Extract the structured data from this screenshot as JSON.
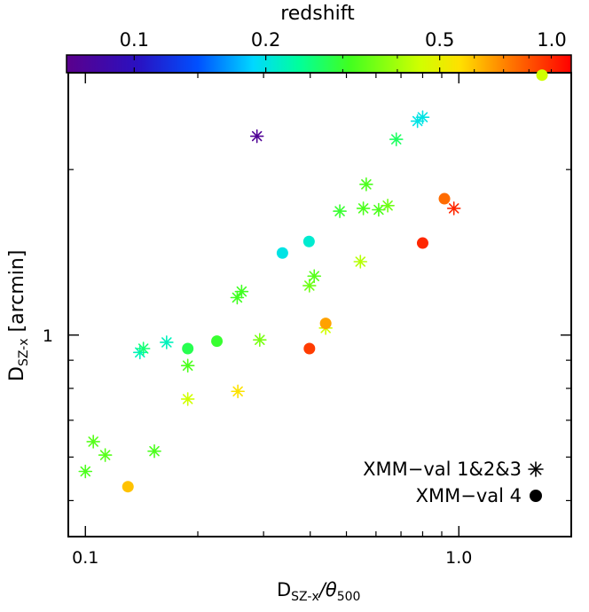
{
  "chart_data": {
    "type": "scatter",
    "xscale": "log",
    "yscale": "log",
    "xlim": [
      0.09,
      2.0
    ],
    "ylim": [
      0.43,
      3.0
    ],
    "xlabel": "D",
    "xlabel_sub": "SZ-x",
    "xlabel_mid": "/θ",
    "xlabel_sub2": "500",
    "ylabel": "D",
    "ylabel_sub": "SZ-x",
    "ylabel_unit": " [arcmin]",
    "x_ticks": [
      {
        "value": 0.1,
        "label": "0.1"
      },
      {
        "value": 1.0,
        "label": "1.0"
      }
    ],
    "y_ticks": [
      {
        "value": 1,
        "label": "1"
      }
    ],
    "colorbar": {
      "title": "redshift",
      "scale": "log",
      "range": [
        0.07,
        1.0
      ],
      "ticks": [
        {
          "value": 0.1,
          "label": "0.1"
        },
        {
          "value": 0.2,
          "label": "0.2"
        },
        {
          "value": 0.5,
          "label": "0.5"
        },
        {
          "value": 1.0,
          "label": "1.0"
        }
      ]
    },
    "legend": {
      "position": "bottom-right",
      "entries": [
        {
          "label": "XMM−val 1&2&3",
          "marker": "asterisk"
        },
        {
          "label": "XMM−val 4",
          "marker": "circle"
        }
      ]
    },
    "series": [
      {
        "name": "XMM-val 1&2&3",
        "marker": "asterisk",
        "points": [
          {
            "x": 0.1,
            "y": 0.565,
            "z": 0.32
          },
          {
            "x": 0.105,
            "y": 0.64,
            "z": 0.33
          },
          {
            "x": 0.113,
            "y": 0.605,
            "z": 0.33
          },
          {
            "x": 0.14,
            "y": 0.93,
            "z": 0.22
          },
          {
            "x": 0.143,
            "y": 0.945,
            "z": 0.26
          },
          {
            "x": 0.153,
            "y": 0.615,
            "z": 0.32
          },
          {
            "x": 0.165,
            "y": 0.97,
            "z": 0.22
          },
          {
            "x": 0.188,
            "y": 0.88,
            "z": 0.32
          },
          {
            "x": 0.188,
            "y": 0.765,
            "z": 0.45
          },
          {
            "x": 0.255,
            "y": 1.17,
            "z": 0.31
          },
          {
            "x": 0.262,
            "y": 1.2,
            "z": 0.31
          },
          {
            "x": 0.256,
            "y": 0.79,
            "z": 0.55
          },
          {
            "x": 0.288,
            "y": 2.3,
            "z": 0.075
          },
          {
            "x": 0.293,
            "y": 0.98,
            "z": 0.36
          },
          {
            "x": 0.398,
            "y": 1.23,
            "z": 0.35
          },
          {
            "x": 0.41,
            "y": 1.28,
            "z": 0.33
          },
          {
            "x": 0.44,
            "y": 1.03,
            "z": 0.45
          },
          {
            "x": 0.48,
            "y": 1.68,
            "z": 0.3
          },
          {
            "x": 0.545,
            "y": 1.36,
            "z": 0.42
          },
          {
            "x": 0.555,
            "y": 1.7,
            "z": 0.32
          },
          {
            "x": 0.565,
            "y": 1.88,
            "z": 0.32
          },
          {
            "x": 0.61,
            "y": 1.69,
            "z": 0.32
          },
          {
            "x": 0.645,
            "y": 1.72,
            "z": 0.35
          },
          {
            "x": 0.68,
            "y": 2.27,
            "z": 0.27
          },
          {
            "x": 0.775,
            "y": 2.45,
            "z": 0.2
          },
          {
            "x": 0.8,
            "y": 2.49,
            "z": 0.2
          },
          {
            "x": 0.97,
            "y": 1.7,
            "z": 0.9
          }
        ]
      },
      {
        "name": "XMM-val 4",
        "marker": "circle",
        "points": [
          {
            "x": 0.13,
            "y": 0.53,
            "z": 0.6
          },
          {
            "x": 0.188,
            "y": 0.945,
            "z": 0.28
          },
          {
            "x": 0.225,
            "y": 0.975,
            "z": 0.3
          },
          {
            "x": 0.337,
            "y": 1.41,
            "z": 0.2
          },
          {
            "x": 0.397,
            "y": 1.48,
            "z": 0.21
          },
          {
            "x": 0.398,
            "y": 0.945,
            "z": 0.85
          },
          {
            "x": 0.44,
            "y": 1.05,
            "z": 0.65
          },
          {
            "x": 0.8,
            "y": 1.47,
            "z": 0.9
          },
          {
            "x": 0.915,
            "y": 1.77,
            "z": 0.75
          },
          {
            "x": 1.67,
            "y": 2.97,
            "z": 0.45
          }
        ]
      }
    ]
  }
}
